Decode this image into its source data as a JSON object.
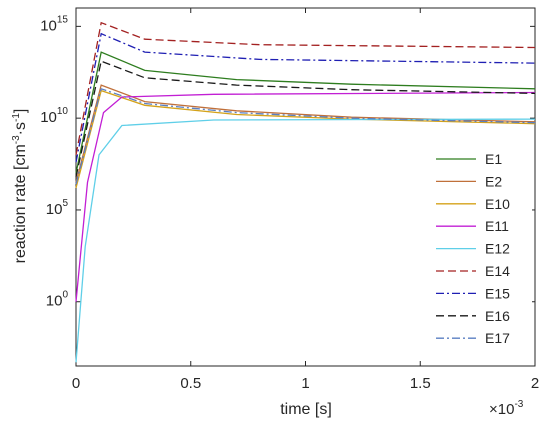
{
  "chart_data": {
    "type": "line",
    "xlabel": "time [s]",
    "x_multiplier": "×10",
    "x_multiplier_exp": "-3",
    "ylabel": "reaction rate [cm",
    "ylabel_exp1": "-3",
    "ylabel_mid": "·s",
    "ylabel_exp2": "-1",
    "ylabel_end": "]",
    "xlim": [
      0,
      0.002
    ],
    "ylim_log10": [
      -3.5,
      16
    ],
    "y_scale": "log",
    "xticks": [
      0,
      0.0005,
      0.001,
      0.0015,
      0.002
    ],
    "xtick_labels": [
      "0",
      "0.5",
      "1",
      "1.5",
      "2"
    ],
    "ytick_log10": [
      0,
      5,
      10,
      15
    ],
    "ytick_base": "10",
    "ytick_exps": [
      "0",
      "5",
      "10",
      "15"
    ],
    "grid": false,
    "legend_position": "right",
    "series": [
      {
        "name": "E1",
        "color": "#2e7d1f",
        "dash": "solid",
        "points_log10": [
          [
            0,
            7.0
          ],
          [
            0.00011,
            13.6
          ],
          [
            0.0003,
            12.6
          ],
          [
            0.0007,
            12.1
          ],
          [
            0.0012,
            11.85
          ],
          [
            0.002,
            11.6
          ]
        ]
      },
      {
        "name": "E2",
        "color": "#c0703a",
        "dash": "solid",
        "points_log10": [
          [
            0,
            6.5
          ],
          [
            0.00011,
            11.8
          ],
          [
            0.0003,
            10.9
          ],
          [
            0.0007,
            10.4
          ],
          [
            0.0012,
            10.05
          ],
          [
            0.002,
            9.8
          ]
        ]
      },
      {
        "name": "E10",
        "color": "#d4a21a",
        "dash": "solid",
        "points_log10": [
          [
            0,
            6.2
          ],
          [
            0.00011,
            11.5
          ],
          [
            0.0003,
            10.7
          ],
          [
            0.0007,
            10.2
          ],
          [
            0.0012,
            9.95
          ],
          [
            0.002,
            9.7
          ]
        ]
      },
      {
        "name": "E11",
        "color": "#c21fd4",
        "dash": "solid",
        "points_log10": [
          [
            0,
            0.0
          ],
          [
            5e-05,
            6.5
          ],
          [
            0.00012,
            10.3
          ],
          [
            0.0002,
            11.15
          ],
          [
            0.0006,
            11.3
          ],
          [
            0.002,
            11.4
          ]
        ]
      },
      {
        "name": "E12",
        "color": "#5fcfe8",
        "dash": "solid",
        "points_log10": [
          [
            0,
            -3.3
          ],
          [
            4e-05,
            3.0
          ],
          [
            0.0001,
            8.0
          ],
          [
            0.0002,
            9.6
          ],
          [
            0.0006,
            9.9
          ],
          [
            0.002,
            9.95
          ]
        ]
      },
      {
        "name": "E14",
        "color": "#a32121",
        "dash": "dashed",
        "points_log10": [
          [
            0,
            8.0
          ],
          [
            0.00011,
            15.2
          ],
          [
            0.0003,
            14.3
          ],
          [
            0.0008,
            14.0
          ],
          [
            0.002,
            13.85
          ]
        ]
      },
      {
        "name": "E15",
        "color": "#1f1fb3",
        "dash": "dashdot",
        "points_log10": [
          [
            0,
            7.6
          ],
          [
            0.00011,
            14.6
          ],
          [
            0.0003,
            13.6
          ],
          [
            0.0008,
            13.2
          ],
          [
            0.002,
            13.0
          ]
        ]
      },
      {
        "name": "E16",
        "color": "#1a1a1a",
        "dash": "dashed",
        "points_log10": [
          [
            0,
            6.8
          ],
          [
            0.00011,
            13.1
          ],
          [
            0.0003,
            12.2
          ],
          [
            0.0007,
            11.8
          ],
          [
            0.0012,
            11.55
          ],
          [
            0.002,
            11.35
          ]
        ]
      },
      {
        "name": "E17",
        "color": "#5a7fc2",
        "dash": "dashdot",
        "points_log10": [
          [
            0,
            6.4
          ],
          [
            0.00011,
            11.6
          ],
          [
            0.0003,
            10.8
          ],
          [
            0.0007,
            10.3
          ],
          [
            0.0012,
            10.0
          ],
          [
            0.002,
            9.75
          ]
        ]
      }
    ]
  }
}
